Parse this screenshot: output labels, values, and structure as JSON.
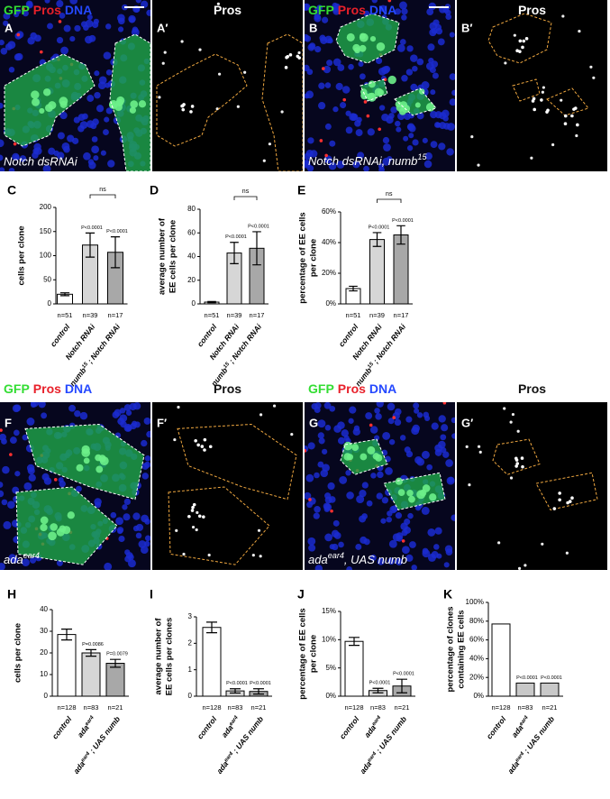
{
  "image_panels": [
    {
      "letter": "A",
      "title": [
        {
          "text": "GFP",
          "color": "#33dd33"
        },
        {
          "text": "Pros",
          "color": "#e8202a"
        },
        {
          "text": "DNA",
          "color": "#2448ff"
        }
      ],
      "caption": "Notch  dsRNAi"
    },
    {
      "letter": "A′",
      "title": [
        {
          "text": "Pros"
        }
      ]
    },
    {
      "letter": "B",
      "title": [
        {
          "text": "GFP",
          "color": "#33dd33"
        },
        {
          "text": "Pros",
          "color": "#e8202a"
        },
        {
          "text": "DNA",
          "color": "#2448ff"
        }
      ],
      "caption": [
        "Notch dsRNAi, numb",
        {
          "sup": "15"
        }
      ]
    },
    {
      "letter": "B′",
      "title": [
        {
          "text": "Pros"
        }
      ]
    },
    {
      "letter": "F",
      "title": [
        {
          "text": "GFP",
          "color": "#33dd33"
        },
        {
          "text": "Pros",
          "color": "#e8202a"
        },
        {
          "text": "DNA",
          "color": "#2448ff"
        }
      ],
      "caption": [
        "ada",
        {
          "sup": "ear4"
        }
      ]
    },
    {
      "letter": "F′",
      "title": [
        {
          "text": "Pros"
        }
      ]
    },
    {
      "letter": "G",
      "title": [
        {
          "text": "GFP",
          "color": "#33dd33"
        },
        {
          "text": "Pros",
          "color": "#e8202a"
        },
        {
          "text": "DNA",
          "color": "#2448ff"
        }
      ],
      "caption": [
        "ada",
        {
          "sup": "ear4"
        },
        ", UAS numb"
      ]
    },
    {
      "letter": "G′",
      "title": [
        {
          "text": "Pros"
        }
      ]
    }
  ],
  "chart_data": [
    {
      "type": "bar",
      "letter": "C",
      "y_label": [
        "cells per clone"
      ],
      "categories": [
        "control",
        "Notch RNAi",
        [
          "numb",
          {
            "sup": "15"
          },
          " ; Notch RNAi"
        ]
      ],
      "values": [
        20,
        122,
        107
      ],
      "errors": [
        3,
        25,
        32
      ],
      "colors": [
        "#ffffff",
        "#d6d6d6",
        "#a8a8a8"
      ],
      "n_labels": [
        "n=51",
        "n=39",
        "n=17"
      ],
      "p_labels": [
        null,
        "P<0.0001",
        "P<0.0001"
      ],
      "bracket_label": "ns",
      "ylim": [
        0,
        200
      ],
      "yticks": [
        0,
        50,
        100,
        150,
        200
      ]
    },
    {
      "type": "bar",
      "letter": "D",
      "y_label": [
        "average number of",
        "EE cells per clone"
      ],
      "categories": [
        "control",
        "Notch RNAi",
        [
          "numb",
          {
            "sup": "15"
          },
          " ; Notch RNAi"
        ]
      ],
      "values": [
        1.5,
        43,
        47
      ],
      "errors": [
        0.5,
        9,
        14
      ],
      "colors": [
        "#ffffff",
        "#d6d6d6",
        "#a8a8a8"
      ],
      "n_labels": [
        "n=51",
        "n=39",
        "n=17"
      ],
      "p_labels": [
        null,
        "P<0.0001",
        "P<0.0001"
      ],
      "bracket_label": "ns",
      "ylim": [
        0,
        80
      ],
      "yticks": [
        0,
        20,
        40,
        60,
        80
      ]
    },
    {
      "type": "bar",
      "letter": "E",
      "y_label": [
        "percentage of EE cells",
        "per clone"
      ],
      "categories": [
        "control",
        "Notch RNAi",
        [
          "numb",
          {
            "sup": "15"
          },
          " ; Notch RNAi"
        ]
      ],
      "values": [
        10,
        42,
        45
      ],
      "errors": [
        1.5,
        4.5,
        6
      ],
      "colors": [
        "#ffffff",
        "#d6d6d6",
        "#a8a8a8"
      ],
      "n_labels": [
        "n=51",
        "n=39",
        "n=17"
      ],
      "p_labels": [
        null,
        "P<0.0001",
        "P<0.0001"
      ],
      "bracket_label": "ns",
      "ylim": [
        0,
        60
      ],
      "yticks": [
        {
          "value": 0,
          "label": "0%"
        },
        {
          "value": 20,
          "label": "20%"
        },
        {
          "value": 40,
          "label": "40%"
        },
        {
          "value": 60,
          "label": "60%"
        }
      ]
    },
    {
      "type": "bar",
      "letter": "H",
      "y_label": [
        "cells per clone"
      ],
      "categories": [
        "control",
        [
          "ada",
          {
            "sup": "ear4"
          }
        ],
        [
          "ada",
          {
            "sup": "ear4"
          },
          " ; UAS numb"
        ]
      ],
      "values": [
        28.5,
        20,
        15.2
      ],
      "errors": [
        2.5,
        1.5,
        1.8
      ],
      "colors": [
        "#ffffff",
        "#d6d6d6",
        "#a8a8a8"
      ],
      "n_labels": [
        "n=128",
        "n=83",
        "n=21"
      ],
      "p_labels": [
        null,
        "P=0.0086",
        "P=0.0079"
      ],
      "ylim": [
        0,
        40
      ],
      "yticks": [
        0,
        10,
        20,
        30,
        40
      ]
    },
    {
      "type": "bar",
      "letter": "I",
      "y_label": [
        "average number of",
        "EE cells per clones"
      ],
      "categories": [
        "control",
        [
          "ada",
          {
            "sup": "ear4"
          }
        ],
        [
          "ada",
          {
            "sup": "ear4"
          },
          " ; UAS numb"
        ]
      ],
      "values": [
        2.6,
        0.2,
        0.18
      ],
      "errors": [
        0.2,
        0.08,
        0.1
      ],
      "colors": [
        "#ffffff",
        "#d6d6d6",
        "#a8a8a8"
      ],
      "n_labels": [
        "n=128",
        "n=83",
        "n=21"
      ],
      "p_labels": [
        null,
        "P<0.0001",
        "P<0.0001"
      ],
      "ylim": [
        0,
        3
      ],
      "yticks": [
        0,
        1,
        2,
        3
      ]
    },
    {
      "type": "bar",
      "letter": "J",
      "y_label": [
        "percentage of EE cells",
        "per clone"
      ],
      "categories": [
        "control",
        [
          "ada",
          {
            "sup": "ear4"
          }
        ],
        [
          "ada",
          {
            "sup": "ear4"
          },
          " ; UAS numb"
        ]
      ],
      "values": [
        9.7,
        1,
        1.8
      ],
      "errors": [
        0.7,
        0.4,
        1.2
      ],
      "colors": [
        "#ffffff",
        "#d6d6d6",
        "#a8a8a8"
      ],
      "n_labels": [
        "n=128",
        "n=83",
        "n=21"
      ],
      "p_labels": [
        null,
        "P<0.0001",
        "P<0.0001"
      ],
      "ylim": [
        0,
        15
      ],
      "yticks": [
        {
          "value": 0,
          "label": "0%"
        },
        {
          "value": 5,
          "label": "5%"
        },
        {
          "value": 10,
          "label": "10%"
        },
        {
          "value": 15,
          "label": "15%"
        }
      ]
    },
    {
      "type": "bar",
      "letter": "K",
      "y_label": [
        "percentage of clones",
        "containing EE cells"
      ],
      "categories": [
        "control",
        [
          "ada",
          {
            "sup": "ear4"
          }
        ],
        [
          "ada",
          {
            "sup": "ear4"
          },
          " ; UAS numb"
        ]
      ],
      "values": [
        77,
        14,
        14
      ],
      "colors": [
        "#ffffff",
        "#c8c8c8",
        "#c8c8c8"
      ],
      "n_labels": [
        "n=128",
        "n=83",
        "n=21"
      ],
      "p_labels": [
        null,
        "P<0.0001",
        "P<0.0001"
      ],
      "ylim": [
        0,
        100
      ],
      "yticks": [
        {
          "value": 0,
          "label": "0%"
        },
        {
          "value": 20,
          "label": "20%"
        },
        {
          "value": 40,
          "label": "40%"
        },
        {
          "value": 60,
          "label": "60%"
        },
        {
          "value": 80,
          "label": "80%"
        },
        {
          "value": 100,
          "label": "100%"
        }
      ]
    }
  ]
}
